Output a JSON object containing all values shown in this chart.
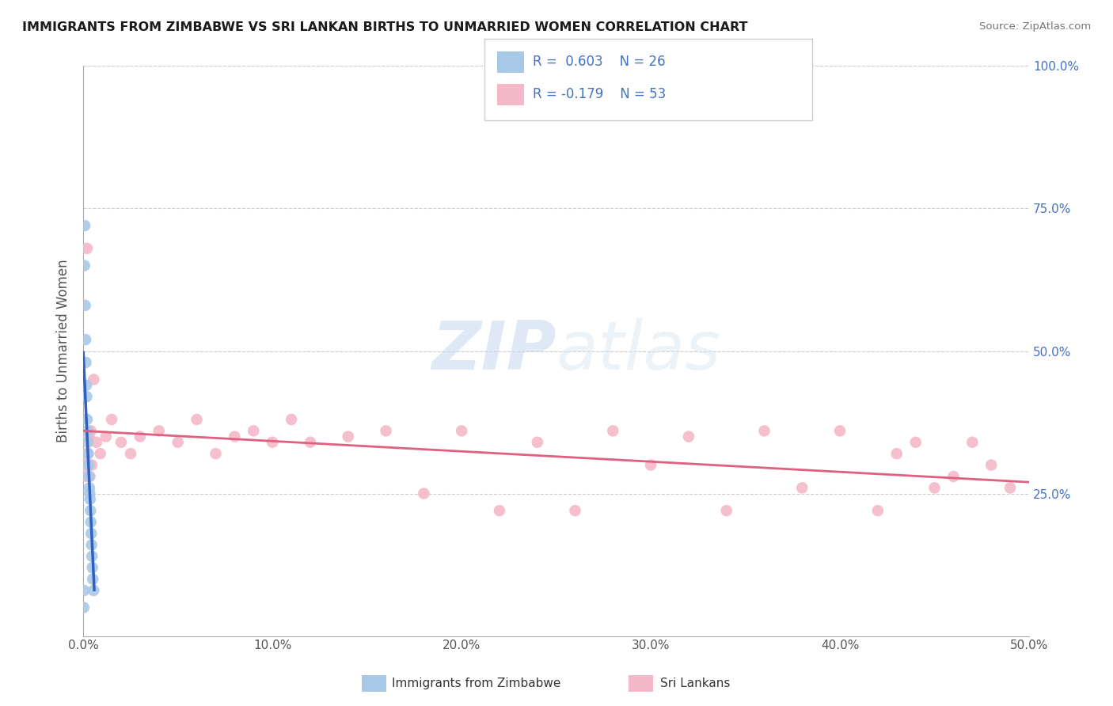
{
  "title": "IMMIGRANTS FROM ZIMBABWE VS SRI LANKAN BIRTHS TO UNMARRIED WOMEN CORRELATION CHART",
  "source": "Source: ZipAtlas.com",
  "xlabel_vals": [
    0.0,
    10.0,
    20.0,
    30.0,
    40.0,
    50.0
  ],
  "ylabel_vals": [
    0.0,
    25.0,
    50.0,
    75.0,
    100.0
  ],
  "ylabel_right_vals": [
    25.0,
    50.0,
    75.0,
    100.0
  ],
  "blue_color": "#a8c8e8",
  "pink_color": "#f4b8c8",
  "blue_line_color": "#3060c0",
  "pink_line_color": "#e06080",
  "R_blue": 0.603,
  "N_blue": 26,
  "R_pink": -0.179,
  "N_pink": 53,
  "legend_label_blue": "Immigrants from Zimbabwe",
  "legend_label_pink": "Sri Lankans",
  "ylabel": "Births to Unmarried Women",
  "watermark_zip": "ZIP",
  "watermark_atlas": "atlas",
  "blue_x": [
    0.02,
    0.04,
    0.06,
    0.08,
    0.1,
    0.12,
    0.14,
    0.16,
    0.18,
    0.2,
    0.22,
    0.24,
    0.26,
    0.28,
    0.3,
    0.32,
    0.34,
    0.36,
    0.38,
    0.4,
    0.42,
    0.44,
    0.46,
    0.48,
    0.5,
    0.55
  ],
  "blue_y": [
    5,
    8,
    65,
    72,
    58,
    52,
    48,
    44,
    42,
    38,
    36,
    34,
    32,
    30,
    28,
    26,
    25,
    24,
    22,
    20,
    18,
    16,
    14,
    12,
    10,
    8
  ],
  "pink_x": [
    0.05,
    0.08,
    0.12,
    0.16,
    0.2,
    0.25,
    0.3,
    0.4,
    0.55,
    0.7,
    0.9,
    1.2,
    1.5,
    2.0,
    2.5,
    3.0,
    4.0,
    5.0,
    6.0,
    7.0,
    8.0,
    9.0,
    10.0,
    11.0,
    12.0,
    14.0,
    16.0,
    18.0,
    20.0,
    22.0,
    24.0,
    26.0,
    28.0,
    30.0,
    32.0,
    34.0,
    36.0,
    38.0,
    40.0,
    42.0,
    43.0,
    44.0,
    45.0,
    46.0,
    47.0,
    48.0,
    49.0,
    0.06,
    0.1,
    0.18,
    0.22,
    0.35,
    0.45
  ],
  "pink_y": [
    32,
    28,
    35,
    30,
    68,
    32,
    35,
    36,
    45,
    34,
    32,
    35,
    38,
    34,
    32,
    35,
    36,
    34,
    38,
    32,
    35,
    36,
    34,
    38,
    34,
    35,
    36,
    25,
    36,
    22,
    34,
    22,
    36,
    30,
    35,
    22,
    36,
    26,
    36,
    22,
    32,
    34,
    26,
    28,
    34,
    30,
    26,
    30,
    32,
    30,
    35,
    28,
    30
  ],
  "xlim": [
    0,
    50
  ],
  "ylim": [
    0,
    100
  ],
  "blue_line_x0": 0.0,
  "blue_line_x1": 0.58,
  "pink_line_x0": 0.0,
  "pink_line_x1": 50.0,
  "pink_line_y0": 36.0,
  "pink_line_y1": 27.0
}
